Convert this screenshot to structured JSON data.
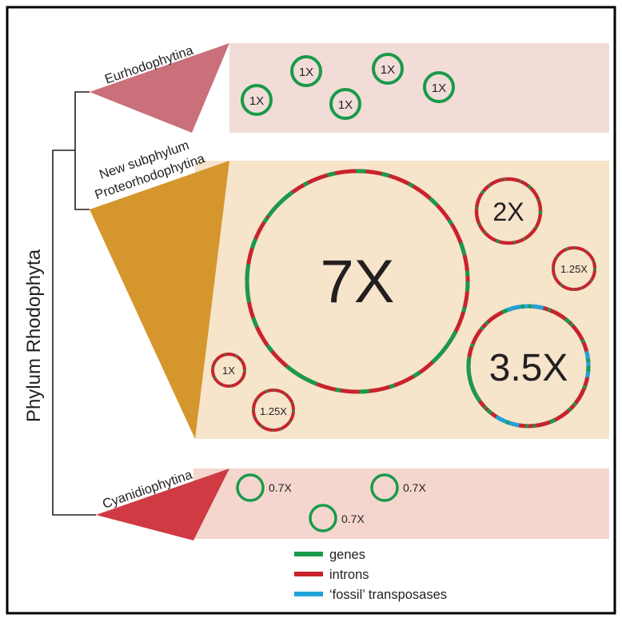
{
  "phylum_label": "Phylum Rhodophyta",
  "colors": {
    "genes": "#1a9a4a",
    "introns": "#c8232c",
    "transposases": "#1fa3d9",
    "eurhodophytina_panel": "#f2dcd8",
    "eurhodophytina_clade": "#c9707a",
    "proteorhodophytina_panel": "#f6e4cb",
    "proteorhodophytina_clade": "#d6962e",
    "cyanidiophytina_panel": "#f4d6cf",
    "cyanidiophytina_clade": "#cf3a43"
  },
  "groups": [
    {
      "name": "Eurhodophytina",
      "name_lines": [
        "Eurhodophytina"
      ],
      "genomes": [
        {
          "label": "1X",
          "pattern": "genes"
        },
        {
          "label": "1X",
          "pattern": "genes"
        },
        {
          "label": "1X",
          "pattern": "genes"
        },
        {
          "label": "1X",
          "pattern": "genes"
        },
        {
          "label": "1X",
          "pattern": "genes"
        }
      ]
    },
    {
      "name": "New subphylum Proteorhodophytina",
      "name_lines": [
        "New subphylum",
        "Proteorhodophytina"
      ],
      "genomes": [
        {
          "label": "7X",
          "pattern": "mostly-introns"
        },
        {
          "label": "2X",
          "pattern": "mostly-introns"
        },
        {
          "label": "1.25X",
          "pattern": "mostly-introns"
        },
        {
          "label": "3.5X",
          "pattern": "introns-genes-transposases"
        },
        {
          "label": "1X",
          "pattern": "mostly-introns"
        },
        {
          "label": "1.25X",
          "pattern": "mostly-introns"
        }
      ]
    },
    {
      "name": "Cyanidiophytina",
      "name_lines": [
        "Cyanidiophytina"
      ],
      "genomes": [
        {
          "label": "0.7X",
          "pattern": "genes"
        },
        {
          "label": "0.7X",
          "pattern": "genes"
        },
        {
          "label": "0.7X",
          "pattern": "genes"
        }
      ]
    }
  ],
  "legend": [
    {
      "label": "genes",
      "color_key": "genes"
    },
    {
      "label": "introns",
      "color_key": "introns"
    },
    {
      "label": "‘fossil’ transposases",
      "color_key": "transposases"
    }
  ]
}
